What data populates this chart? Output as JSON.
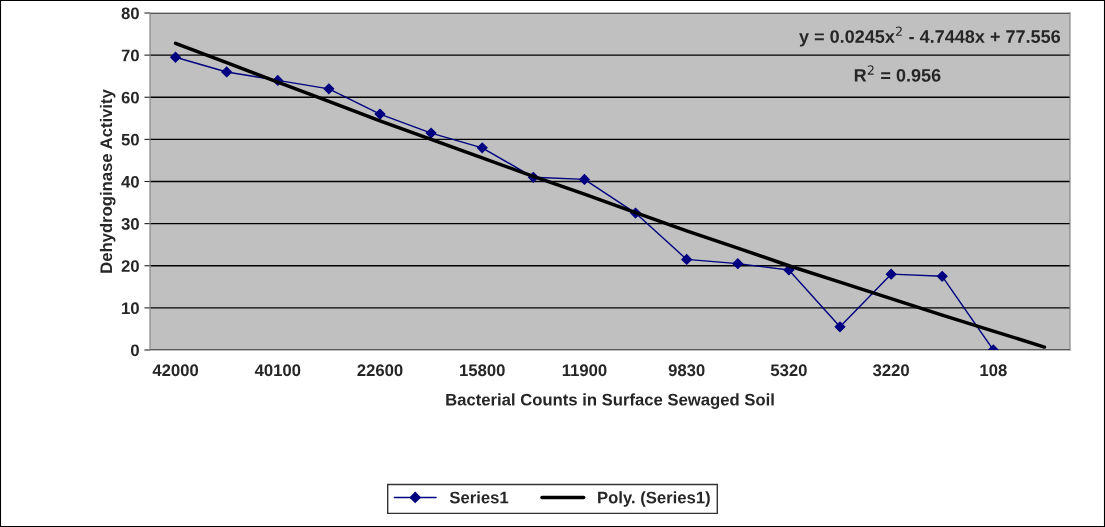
{
  "chart_data": {
    "type": "line",
    "xlabel": "Bacterial Counts in Surface Sewaged Soil",
    "ylabel": "Dehydroginase Activity",
    "categories": [
      "42000",
      null,
      "40100",
      null,
      "22600",
      null,
      "15800",
      null,
      "11900",
      null,
      "9830",
      null,
      "5320",
      null,
      "3220",
      null,
      "108",
      null
    ],
    "series": [
      {
        "name": "Series1",
        "color": "#000080",
        "marker": "diamond",
        "values": [
          69.5,
          66,
          64,
          62,
          56,
          51.5,
          48,
          41,
          40.5,
          32.5,
          21.5,
          20.5,
          19,
          5.5,
          18,
          17.5,
          0,
          null
        ]
      },
      {
        "name": "Poly. (Series1)",
        "color": "#000000",
        "marker": "none",
        "values": [
          72.8,
          68.2,
          63.6,
          59.0,
          54.4,
          50.0,
          45.6,
          41.2,
          37.0,
          32.6,
          28.3,
          24.2,
          20.0,
          16.1,
          12.2,
          8.3,
          4.5,
          0.7
        ]
      }
    ],
    "ylim": [
      0,
      80
    ],
    "yticks": [
      0,
      10,
      20,
      30,
      40,
      50,
      60,
      70,
      80
    ],
    "grid": "y",
    "legend": "bottom",
    "annotations": [
      "y = 0.0245x$^{2}$ - 4.7448x + 77.556",
      "R$^{2}$ = 0.956"
    ]
  }
}
